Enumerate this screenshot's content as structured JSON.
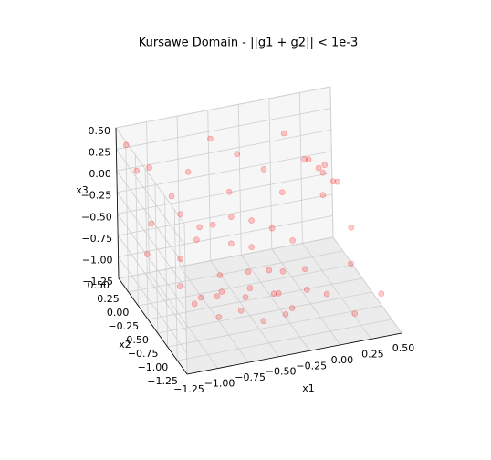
{
  "chart_data": {
    "type": "scatter3d",
    "title": "Kursawe Domain - ||g1 + g2|| < 1e-3",
    "xlabel": "x1",
    "ylabel": "x2",
    "zlabel": "x3",
    "color": "#ff0000",
    "xlim": [
      -1.25,
      0.5
    ],
    "ylim": [
      -1.25,
      0.5
    ],
    "zlim": [
      -1.25,
      0.5
    ],
    "xticks": [
      {
        "value": -1.25,
        "label": "−1.25"
      },
      {
        "value": -1.0,
        "label": "−1.00"
      },
      {
        "value": -0.75,
        "label": "−0.75"
      },
      {
        "value": -0.5,
        "label": "−0.50"
      },
      {
        "value": -0.25,
        "label": "−0.25"
      },
      {
        "value": 0,
        "label": "0.00"
      },
      {
        "value": 0.25,
        "label": "0.25"
      },
      {
        "value": 0.5,
        "label": "0.50"
      }
    ],
    "yticks": [
      {
        "value": -1.25,
        "label": "−1.25"
      },
      {
        "value": -1.0,
        "label": "−1.00"
      },
      {
        "value": -0.75,
        "label": "−0.75"
      },
      {
        "value": -0.5,
        "label": "−0.50"
      },
      {
        "value": -0.25,
        "label": "−0.25"
      },
      {
        "value": 0,
        "label": "0.00"
      },
      {
        "value": 0.25,
        "label": "0.25"
      },
      {
        "value": 0.5,
        "label": "0.50"
      }
    ],
    "zticks": [
      {
        "value": -1.25,
        "label": "−1.25"
      },
      {
        "value": -1.0,
        "label": "−1.00"
      },
      {
        "value": -0.75,
        "label": "−0.75"
      },
      {
        "value": -0.5,
        "label": "−0.50"
      },
      {
        "value": -0.25,
        "label": "−0.25"
      },
      {
        "value": 0,
        "label": "0.00"
      },
      {
        "value": 0.25,
        "label": "0.25"
      },
      {
        "value": 0.5,
        "label": "0.50"
      }
    ],
    "x": [
      -0.8,
      -0.7,
      -0.6,
      -0.5,
      -0.4,
      -0.3,
      -0.2,
      -0.1,
      0.0,
      -0.6,
      -0.45,
      -0.3,
      -0.75,
      -0.9,
      -0.55,
      -0.35,
      -0.15,
      0.05,
      0.1,
      -0.2,
      -0.9,
      -0.75,
      -0.6,
      -0.45,
      -0.3,
      -0.15,
      0.0,
      -0.5,
      -0.35,
      0.3,
      0.35,
      0.4,
      0.25,
      0.45,
      0.3,
      0.38,
      0.2,
      -1.2,
      -1.15,
      -1.0,
      -0.9,
      -1.1,
      -0.7,
      -0.5,
      -0.3,
      -0.1,
      0.1,
      -0.8,
      -0.4,
      0.0,
      -1.2,
      -1.0,
      0.3,
      0.45,
      0.2,
      0.4,
      -0.6
    ],
    "y": [
      -0.2,
      -0.3,
      -0.1,
      -0.4,
      -0.2,
      -0.5,
      -0.3,
      -0.1,
      -0.4,
      -0.6,
      -0.7,
      -0.8,
      -0.5,
      -0.35,
      0.1,
      0.0,
      0.1,
      -0.2,
      -0.6,
      -0.65,
      0.0,
      0.05,
      0.1,
      0.1,
      0.05,
      0.0,
      -0.05,
      -0.05,
      -0.1,
      0.2,
      0.25,
      0.15,
      0.3,
      0.2,
      0.1,
      0.3,
      0.25,
      0.4,
      0.3,
      0.45,
      0.2,
      0.1,
      0.4,
      0.45,
      0.4,
      0.35,
      0.45,
      0.3,
      0.3,
      0.2,
      -0.1,
      -0.3,
      -0.6,
      -0.9,
      -1.0,
      -0.3,
      0.45
    ],
    "z": [
      -1.15,
      -1.1,
      -1.2,
      -1.1,
      -1.15,
      -1.05,
      -1.2,
      -1.1,
      -1.15,
      -1.1,
      -1.2,
      -1.1,
      -1.2,
      -1.1,
      -1.15,
      -1.1,
      -1.2,
      -1.05,
      -1.1,
      -1.15,
      -0.8,
      -0.65,
      -0.55,
      -0.5,
      -0.55,
      -0.65,
      -0.8,
      -0.7,
      -0.75,
      -0.2,
      -0.3,
      -0.35,
      -0.15,
      -0.4,
      -0.45,
      -0.25,
      -0.1,
      0.35,
      0.1,
      0.0,
      -0.2,
      -0.4,
      -0.1,
      0.2,
      0.0,
      -0.2,
      0.1,
      -0.5,
      -0.35,
      -0.4,
      -0.6,
      -0.9,
      -0.8,
      -1.0,
      -1.1,
      -0.6,
      -0.8
    ]
  }
}
